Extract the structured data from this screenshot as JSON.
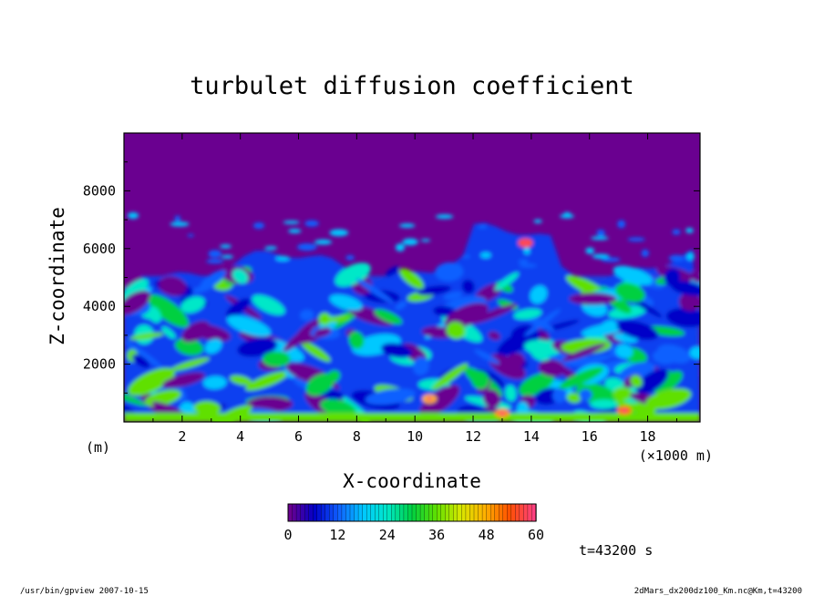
{
  "chart_data": {
    "type": "heatmap",
    "title": "turbulet diffusion coefficient",
    "xlabel": "X-coordinate",
    "ylabel": "Z-coordinate",
    "x_unit_left": "(m)",
    "x_unit_right": "(×1000 m)",
    "xlim": [
      0,
      19.8
    ],
    "ylim": [
      0,
      10000
    ],
    "x_ticks": [
      2,
      4,
      6,
      8,
      10,
      12,
      14,
      16,
      18
    ],
    "y_ticks": [
      2000,
      4000,
      6000,
      8000
    ],
    "x_tick_labels": [
      "2",
      "4",
      "6",
      "8",
      "10",
      "12",
      "14",
      "16",
      "18"
    ],
    "y_tick_labels": [
      "2000",
      "4000",
      "6000",
      "8000"
    ],
    "colorbar": {
      "min": 0,
      "max": 60,
      "ticks": [
        0,
        12,
        24,
        36,
        48,
        60
      ],
      "tick_labels": [
        "0",
        "12",
        "24",
        "36",
        "48",
        "60"
      ],
      "colors": [
        "#6a0090",
        "#0000c8",
        "#1060ff",
        "#00c8ff",
        "#00e8c8",
        "#00d040",
        "#60e000",
        "#d8e800",
        "#ffb000",
        "#ff5000",
        "#ff4080"
      ]
    },
    "field": {
      "background_value": 0,
      "background_color": "#6a0090",
      "turbulent_layer_top_approx": 6000,
      "hotspots": [
        {
          "x": 10.5,
          "z": 800,
          "value": 48
        },
        {
          "x": 13.8,
          "z": 6200,
          "value": 55
        },
        {
          "x": 17.2,
          "z": 400,
          "value": 52
        },
        {
          "x": 13.0,
          "z": 300,
          "value": 50
        }
      ]
    },
    "time_label": "t=43200 s"
  },
  "footer": {
    "left": "/usr/bin/gpview  2007-10-15",
    "right": "2dMars_dx200dz100_Km.nc@Km,t=43200"
  }
}
